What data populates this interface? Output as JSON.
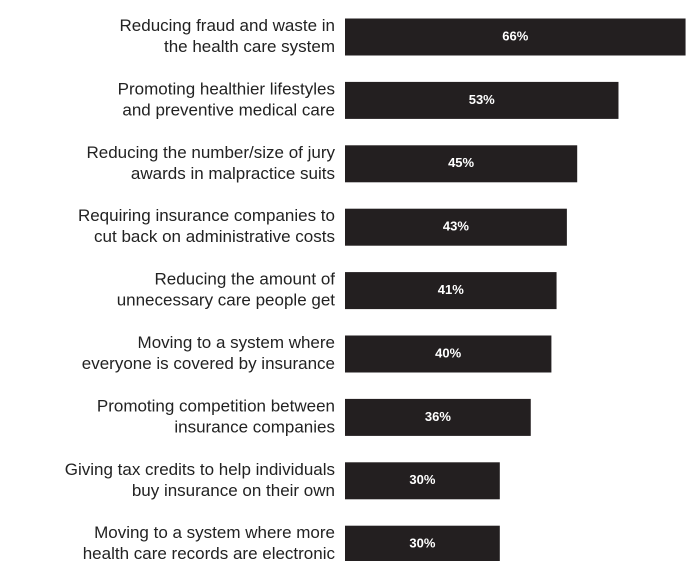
{
  "chart_data": {
    "type": "bar",
    "orientation": "horizontal",
    "categories": [
      [
        "Reducing fraud and waste in",
        "the health care system"
      ],
      [
        "Promoting healthier lifestyles",
        "and preventive medical care"
      ],
      [
        "Reducing the number/size of jury",
        "awards in malpractice suits"
      ],
      [
        "Requiring insurance companies to",
        "cut back on administrative costs"
      ],
      [
        "Reducing the amount of",
        "unnecessary care people get"
      ],
      [
        "Moving to a system where",
        "everyone is covered by insurance"
      ],
      [
        "Promoting competition between",
        "insurance companies"
      ],
      [
        "Giving tax credits to help individuals",
        "buy insurance on their own"
      ],
      [
        "Moving to a system where more",
        "health care records are electronic"
      ]
    ],
    "values": [
      66,
      53,
      45,
      43,
      41,
      40,
      36,
      30,
      30
    ],
    "value_labels": [
      "66%",
      "53%",
      "45%",
      "43%",
      "41%",
      "40%",
      "36%",
      "30%",
      "30%"
    ],
    "color": "#231f20"
  }
}
